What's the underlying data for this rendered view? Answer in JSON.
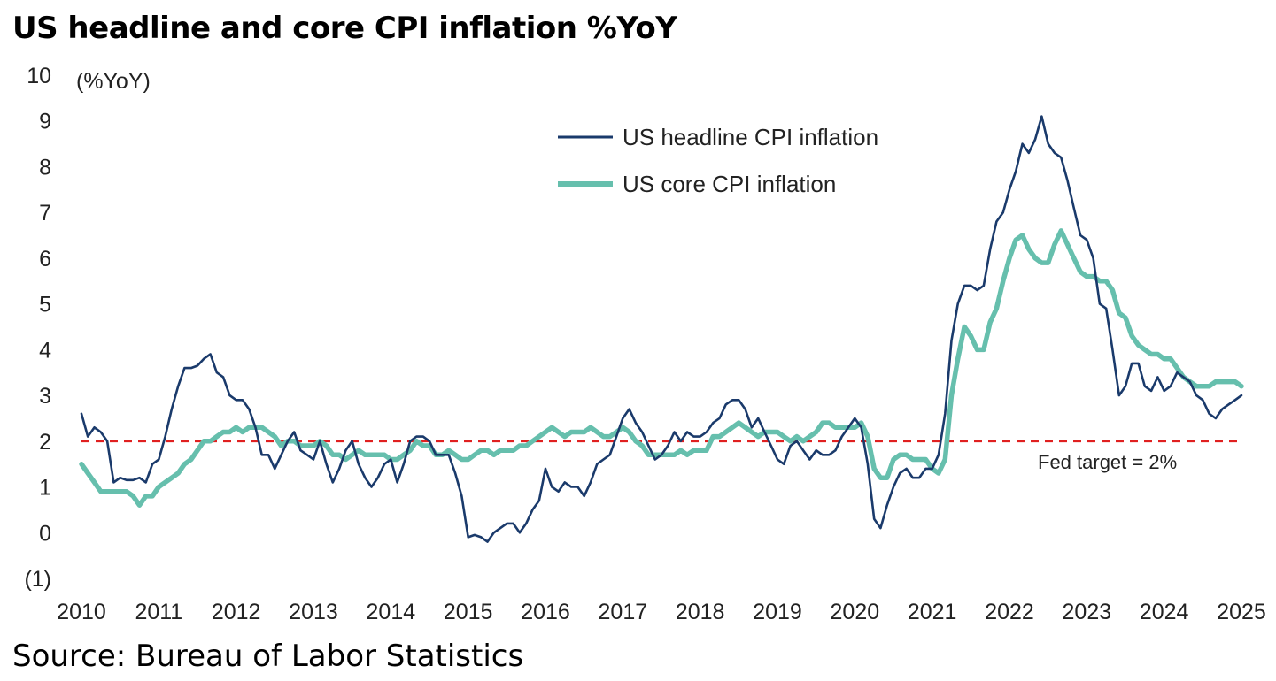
{
  "title": "US headline and core CPI inflation %YoY",
  "source": "Source: Bureau of Labor Statistics",
  "chart_data": {
    "type": "line",
    "unit_label": "(%YoY)",
    "ylim": [
      -1,
      10
    ],
    "xlim": [
      2010,
      2025
    ],
    "y_ticks": [
      {
        "value": 10,
        "label": "10"
      },
      {
        "value": 9,
        "label": "9"
      },
      {
        "value": 8,
        "label": "8"
      },
      {
        "value": 7,
        "label": "7"
      },
      {
        "value": 6,
        "label": "6"
      },
      {
        "value": 5,
        "label": "5"
      },
      {
        "value": 4,
        "label": "4"
      },
      {
        "value": 3,
        "label": "3"
      },
      {
        "value": 2,
        "label": "2"
      },
      {
        "value": 1,
        "label": "1"
      },
      {
        "value": 0,
        "label": "0"
      },
      {
        "value": -1,
        "label": "(1)"
      }
    ],
    "x_ticks": [
      "2010",
      "2011",
      "2012",
      "2013",
      "2014",
      "2015",
      "2016",
      "2017",
      "2018",
      "2019",
      "2020",
      "2021",
      "2022",
      "2023",
      "2024",
      "2025"
    ],
    "grid": false,
    "legend_position": "top-right",
    "reference_line": {
      "value": 2,
      "label": "Fed target = 2%",
      "color": "#e02020"
    },
    "series": [
      {
        "name": "US headline CPI inflation",
        "color": "#1a3a6b",
        "x": [
          2010.0,
          2010.083,
          2010.167,
          2010.25,
          2010.333,
          2010.417,
          2010.5,
          2010.583,
          2010.667,
          2010.75,
          2010.833,
          2010.917,
          2011.0,
          2011.083,
          2011.167,
          2011.25,
          2011.333,
          2011.417,
          2011.5,
          2011.583,
          2011.667,
          2011.75,
          2011.833,
          2011.917,
          2012.0,
          2012.083,
          2012.167,
          2012.25,
          2012.333,
          2012.417,
          2012.5,
          2012.583,
          2012.667,
          2012.75,
          2012.833,
          2012.917,
          2013.0,
          2013.083,
          2013.167,
          2013.25,
          2013.333,
          2013.417,
          2013.5,
          2013.583,
          2013.667,
          2013.75,
          2013.833,
          2013.917,
          2014.0,
          2014.083,
          2014.167,
          2014.25,
          2014.333,
          2014.417,
          2014.5,
          2014.583,
          2014.667,
          2014.75,
          2014.833,
          2014.917,
          2015.0,
          2015.083,
          2015.167,
          2015.25,
          2015.333,
          2015.417,
          2015.5,
          2015.583,
          2015.667,
          2015.75,
          2015.833,
          2015.917,
          2016.0,
          2016.083,
          2016.167,
          2016.25,
          2016.333,
          2016.417,
          2016.5,
          2016.583,
          2016.667,
          2016.75,
          2016.833,
          2016.917,
          2017.0,
          2017.083,
          2017.167,
          2017.25,
          2017.333,
          2017.417,
          2017.5,
          2017.583,
          2017.667,
          2017.75,
          2017.833,
          2017.917,
          2018.0,
          2018.083,
          2018.167,
          2018.25,
          2018.333,
          2018.417,
          2018.5,
          2018.583,
          2018.667,
          2018.75,
          2018.833,
          2018.917,
          2019.0,
          2019.083,
          2019.167,
          2019.25,
          2019.333,
          2019.417,
          2019.5,
          2019.583,
          2019.667,
          2019.75,
          2019.833,
          2019.917,
          2020.0,
          2020.083,
          2020.167,
          2020.25,
          2020.333,
          2020.417,
          2020.5,
          2020.583,
          2020.667,
          2020.75,
          2020.833,
          2020.917,
          2021.0,
          2021.083,
          2021.167,
          2021.25,
          2021.333,
          2021.417,
          2021.5,
          2021.583,
          2021.667,
          2021.75,
          2021.833,
          2021.917,
          2022.0,
          2022.083,
          2022.167,
          2022.25,
          2022.333,
          2022.417,
          2022.5,
          2022.583,
          2022.667,
          2022.75,
          2022.833,
          2022.917,
          2023.0,
          2023.083,
          2023.167,
          2023.25,
          2023.333,
          2023.417,
          2023.5,
          2023.583,
          2023.667,
          2023.75,
          2023.833,
          2023.917,
          2024.0,
          2024.083,
          2024.167,
          2024.25,
          2024.333,
          2024.417,
          2024.5,
          2024.583,
          2024.667,
          2024.75,
          2024.833,
          2024.917,
          2025.0
        ],
        "values": [
          2.6,
          2.1,
          2.3,
          2.2,
          2.0,
          1.1,
          1.2,
          1.15,
          1.15,
          1.2,
          1.1,
          1.5,
          1.6,
          2.1,
          2.7,
          3.2,
          3.6,
          3.6,
          3.65,
          3.8,
          3.9,
          3.5,
          3.4,
          3.0,
          2.9,
          2.9,
          2.7,
          2.3,
          1.7,
          1.7,
          1.4,
          1.7,
          2.0,
          2.2,
          1.8,
          1.7,
          1.6,
          2.0,
          1.5,
          1.1,
          1.4,
          1.8,
          2.0,
          1.5,
          1.2,
          1.0,
          1.2,
          1.5,
          1.6,
          1.1,
          1.5,
          2.0,
          2.1,
          2.1,
          2.0,
          1.7,
          1.7,
          1.7,
          1.3,
          0.8,
          -0.1,
          -0.05,
          -0.1,
          -0.2,
          0.0,
          0.1,
          0.2,
          0.2,
          0.0,
          0.2,
          0.5,
          0.7,
          1.4,
          1.0,
          0.9,
          1.1,
          1.0,
          1.0,
          0.8,
          1.1,
          1.5,
          1.6,
          1.7,
          2.1,
          2.5,
          2.7,
          2.4,
          2.2,
          1.9,
          1.6,
          1.7,
          1.9,
          2.2,
          2.0,
          2.2,
          2.1,
          2.1,
          2.2,
          2.4,
          2.5,
          2.8,
          2.9,
          2.9,
          2.7,
          2.3,
          2.5,
          2.2,
          1.9,
          1.6,
          1.5,
          1.9,
          2.0,
          1.8,
          1.6,
          1.8,
          1.7,
          1.7,
          1.8,
          2.1,
          2.3,
          2.5,
          2.3,
          1.5,
          0.3,
          0.1,
          0.6,
          1.0,
          1.3,
          1.4,
          1.2,
          1.2,
          1.4,
          1.4,
          1.7,
          2.6,
          4.2,
          5.0,
          5.4,
          5.4,
          5.3,
          5.4,
          6.2,
          6.8,
          7.0,
          7.5,
          7.9,
          8.5,
          8.3,
          8.6,
          9.1,
          8.5,
          8.3,
          8.2,
          7.7,
          7.1,
          6.5,
          6.4,
          6.0,
          5.0,
          4.9,
          4.0,
          3.0,
          3.2,
          3.7,
          3.7,
          3.2,
          3.1,
          3.4,
          3.1,
          3.2,
          3.5,
          3.4,
          3.3,
          3.0,
          2.9,
          2.6,
          2.5,
          2.7,
          2.8,
          2.9,
          3.0
        ]
      },
      {
        "name": "US core CPI inflation",
        "color": "#66bfad",
        "x": [
          2010.0,
          2010.083,
          2010.167,
          2010.25,
          2010.333,
          2010.417,
          2010.5,
          2010.583,
          2010.667,
          2010.75,
          2010.833,
          2010.917,
          2011.0,
          2011.083,
          2011.167,
          2011.25,
          2011.333,
          2011.417,
          2011.5,
          2011.583,
          2011.667,
          2011.75,
          2011.833,
          2011.917,
          2012.0,
          2012.083,
          2012.167,
          2012.25,
          2012.333,
          2012.417,
          2012.5,
          2012.583,
          2012.667,
          2012.75,
          2012.833,
          2012.917,
          2013.0,
          2013.083,
          2013.167,
          2013.25,
          2013.333,
          2013.417,
          2013.5,
          2013.583,
          2013.667,
          2013.75,
          2013.833,
          2013.917,
          2014.0,
          2014.083,
          2014.167,
          2014.25,
          2014.333,
          2014.417,
          2014.5,
          2014.583,
          2014.667,
          2014.75,
          2014.833,
          2014.917,
          2015.0,
          2015.083,
          2015.167,
          2015.25,
          2015.333,
          2015.417,
          2015.5,
          2015.583,
          2015.667,
          2015.75,
          2015.833,
          2015.917,
          2016.0,
          2016.083,
          2016.167,
          2016.25,
          2016.333,
          2016.417,
          2016.5,
          2016.583,
          2016.667,
          2016.75,
          2016.833,
          2016.917,
          2017.0,
          2017.083,
          2017.167,
          2017.25,
          2017.333,
          2017.417,
          2017.5,
          2017.583,
          2017.667,
          2017.75,
          2017.833,
          2017.917,
          2018.0,
          2018.083,
          2018.167,
          2018.25,
          2018.333,
          2018.417,
          2018.5,
          2018.583,
          2018.667,
          2018.75,
          2018.833,
          2018.917,
          2019.0,
          2019.083,
          2019.167,
          2019.25,
          2019.333,
          2019.417,
          2019.5,
          2019.583,
          2019.667,
          2019.75,
          2019.833,
          2019.917,
          2020.0,
          2020.083,
          2020.167,
          2020.25,
          2020.333,
          2020.417,
          2020.5,
          2020.583,
          2020.667,
          2020.75,
          2020.833,
          2020.917,
          2021.0,
          2021.083,
          2021.167,
          2021.25,
          2021.333,
          2021.417,
          2021.5,
          2021.583,
          2021.667,
          2021.75,
          2021.833,
          2021.917,
          2022.0,
          2022.083,
          2022.167,
          2022.25,
          2022.333,
          2022.417,
          2022.5,
          2022.583,
          2022.667,
          2022.75,
          2022.833,
          2022.917,
          2023.0,
          2023.083,
          2023.167,
          2023.25,
          2023.333,
          2023.417,
          2023.5,
          2023.583,
          2023.667,
          2023.75,
          2023.833,
          2023.917,
          2024.0,
          2024.083,
          2024.167,
          2024.25,
          2024.333,
          2024.417,
          2024.5,
          2024.583,
          2024.667,
          2024.75,
          2024.833,
          2024.917,
          2025.0
        ],
        "values": [
          1.5,
          1.3,
          1.1,
          0.9,
          0.9,
          0.9,
          0.9,
          0.9,
          0.8,
          0.6,
          0.8,
          0.8,
          1.0,
          1.1,
          1.2,
          1.3,
          1.5,
          1.6,
          1.8,
          2.0,
          2.0,
          2.1,
          2.2,
          2.2,
          2.3,
          2.2,
          2.3,
          2.3,
          2.3,
          2.2,
          2.1,
          1.9,
          2.0,
          2.0,
          1.9,
          1.9,
          1.9,
          2.0,
          1.9,
          1.7,
          1.7,
          1.6,
          1.7,
          1.8,
          1.7,
          1.7,
          1.7,
          1.7,
          1.6,
          1.6,
          1.7,
          1.8,
          2.0,
          1.9,
          1.9,
          1.7,
          1.7,
          1.8,
          1.7,
          1.6,
          1.6,
          1.7,
          1.8,
          1.8,
          1.7,
          1.8,
          1.8,
          1.8,
          1.9,
          1.9,
          2.0,
          2.1,
          2.2,
          2.3,
          2.2,
          2.1,
          2.2,
          2.2,
          2.2,
          2.3,
          2.2,
          2.1,
          2.1,
          2.2,
          2.3,
          2.2,
          2.0,
          1.9,
          1.7,
          1.7,
          1.7,
          1.7,
          1.7,
          1.8,
          1.7,
          1.8,
          1.8,
          1.8,
          2.1,
          2.1,
          2.2,
          2.3,
          2.4,
          2.3,
          2.2,
          2.1,
          2.2,
          2.2,
          2.2,
          2.1,
          2.0,
          2.1,
          2.0,
          2.1,
          2.2,
          2.4,
          2.4,
          2.3,
          2.3,
          2.3,
          2.3,
          2.4,
          2.1,
          1.4,
          1.2,
          1.2,
          1.6,
          1.7,
          1.7,
          1.6,
          1.6,
          1.6,
          1.4,
          1.3,
          1.6,
          3.0,
          3.8,
          4.5,
          4.3,
          4.0,
          4.0,
          4.6,
          4.9,
          5.5,
          6.0,
          6.4,
          6.5,
          6.2,
          6.0,
          5.9,
          5.9,
          6.3,
          6.6,
          6.3,
          6.0,
          5.7,
          5.6,
          5.6,
          5.5,
          5.5,
          5.3,
          4.8,
          4.7,
          4.3,
          4.1,
          4.0,
          3.9,
          3.9,
          3.8,
          3.8,
          3.6,
          3.4,
          3.3,
          3.2,
          3.2,
          3.2,
          3.3,
          3.3,
          3.3,
          3.3,
          3.2
        ]
      }
    ]
  }
}
